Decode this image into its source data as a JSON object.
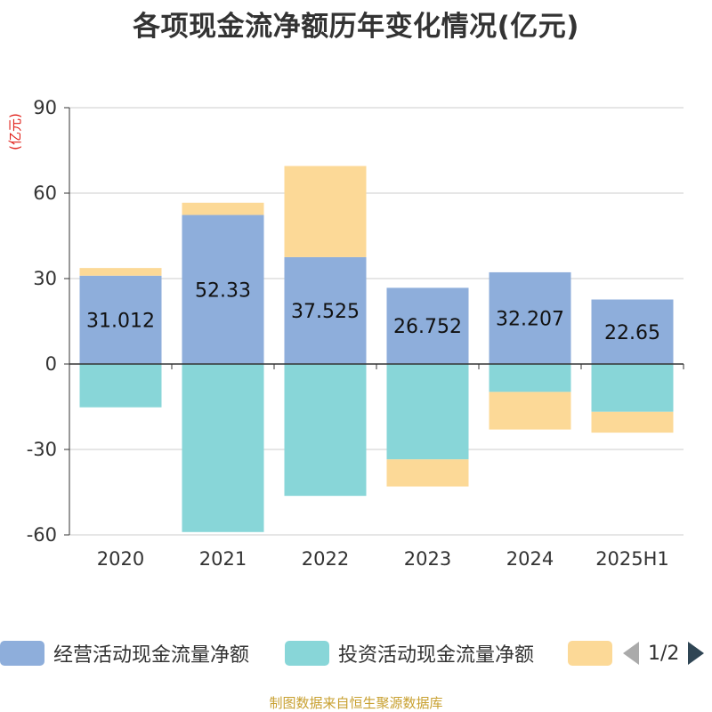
{
  "chart_data": {
    "type": "bar",
    "stacked": true,
    "title": "各项现金流净额历年变化情况(亿元)",
    "unit_label": "(亿元)",
    "categories": [
      "2020",
      "2021",
      "2022",
      "2023",
      "2024",
      "2025H1"
    ],
    "ylim": [
      -60,
      90
    ],
    "yticks": [
      -60,
      -30,
      0,
      30,
      60,
      90
    ],
    "grid": true,
    "series": [
      {
        "name": "经营活动现金流量净额",
        "color": "#8eaedb",
        "values": [
          31.012,
          52.33,
          37.525,
          26.752,
          32.207,
          22.65
        ],
        "show_labels": true
      },
      {
        "name": "投资活动现金流量净额",
        "color": "#88d6d8",
        "values": [
          -15.2,
          -59.0,
          -46.3,
          -33.5,
          -9.8,
          -16.8
        ],
        "show_labels": false
      },
      {
        "name": "",
        "color": "#fcd997",
        "values": [
          2.7,
          4.3,
          32.0,
          -9.5,
          -13.2,
          -7.3
        ],
        "show_labels": false
      }
    ],
    "legend": {
      "position": "bottom",
      "page": "1/2"
    },
    "source": "制图数据来自恒生聚源数据库"
  }
}
